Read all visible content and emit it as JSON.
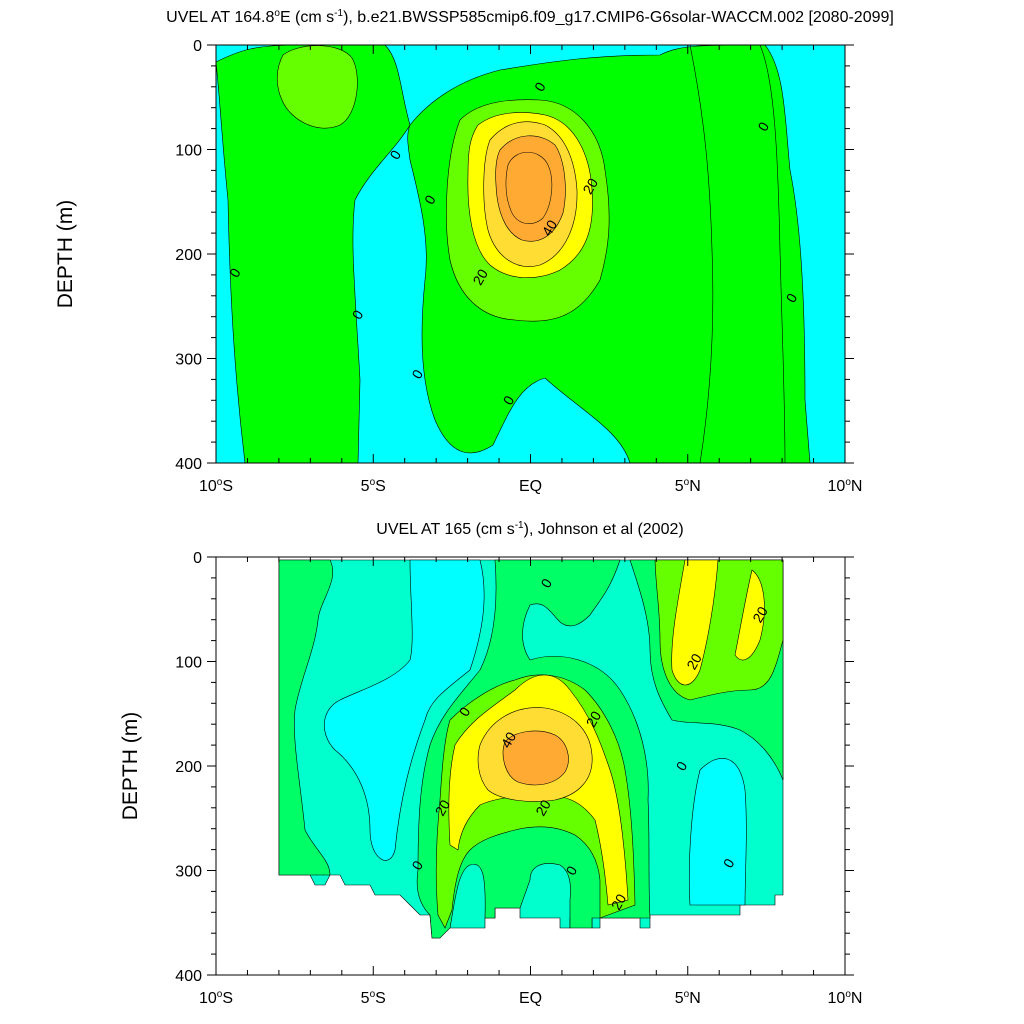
{
  "colors": {
    "c_neg": "#00ffff",
    "c_0": "#00ffcc",
    "c_5": "#00ff66",
    "c_10": "#00ff00",
    "c_15": "#66ff00",
    "c_20": "#ffff00",
    "c_30": "#ffdd33",
    "c_40": "#ffaa33",
    "missing": "#ffffff"
  },
  "chart_data": [
    {
      "type": "heatmap",
      "title_main": "UVEL AT 164.8",
      "title_deg": "o",
      "title_e": "E (cm s",
      "title_exp": "-1",
      "title_rest": "), b.e21.BWSSP585cmip6.f09_g17.CMIP6-G6solar-WACCM.002 [2080-2099]",
      "ylabel": "DEPTH (m)",
      "x_ticks": [
        {
          "value": -10,
          "num": "10",
          "deg": "o",
          "hemi": "S"
        },
        {
          "value": -5,
          "num": "5",
          "deg": "o",
          "hemi": "S"
        },
        {
          "value": 0,
          "num": "EQ",
          "deg": "",
          "hemi": ""
        },
        {
          "value": 5,
          "num": "5",
          "deg": "o",
          "hemi": "N"
        },
        {
          "value": 10,
          "num": "10",
          "deg": "o",
          "hemi": "N"
        }
      ],
      "y_ticks": [
        0,
        100,
        200,
        300,
        400
      ],
      "xlim": [
        -10,
        10
      ],
      "ylim": [
        0,
        400
      ],
      "contour_levels": [
        0,
        20,
        40
      ],
      "contour_labels": [
        {
          "text": "0",
          "lat": 0.3,
          "depth": 40
        },
        {
          "text": "0",
          "lat": -4.3,
          "depth": 105
        },
        {
          "text": "0",
          "lat": -3.2,
          "depth": 148
        },
        {
          "text": "0",
          "lat": -9.4,
          "depth": 218
        },
        {
          "text": "0",
          "lat": -5.5,
          "depth": 258
        },
        {
          "text": "0",
          "lat": -3.6,
          "depth": 315
        },
        {
          "text": "0",
          "lat": -0.7,
          "depth": 340
        },
        {
          "text": "0",
          "lat": 7.4,
          "depth": 78
        },
        {
          "text": "0",
          "lat": 8.3,
          "depth": 242
        },
        {
          "text": "20",
          "lat": 1.9,
          "depth": 135
        },
        {
          "text": "40",
          "lat": 0.6,
          "depth": 175
        },
        {
          "text": "20",
          "lat": -1.6,
          "depth": 222
        }
      ]
    },
    {
      "type": "heatmap",
      "title_main": "UVEL AT 165 (cm s",
      "title_exp": "-1",
      "title_rest": "), Johnson et al (2002)",
      "ylabel": "DEPTH (m)",
      "x_ticks": [
        {
          "value": -10,
          "num": "10",
          "deg": "o",
          "hemi": "S"
        },
        {
          "value": -5,
          "num": "5",
          "deg": "o",
          "hemi": "S"
        },
        {
          "value": 0,
          "num": "EQ",
          "deg": "",
          "hemi": ""
        },
        {
          "value": 5,
          "num": "5",
          "deg": "o",
          "hemi": "N"
        },
        {
          "value": 10,
          "num": "10",
          "deg": "o",
          "hemi": "N"
        }
      ],
      "y_ticks": [
        0,
        100,
        200,
        300,
        400
      ],
      "xlim": [
        -10,
        10
      ],
      "ylim": [
        0,
        400
      ],
      "contour_levels": [
        0,
        20,
        40
      ],
      "contour_labels": [
        {
          "text": "0",
          "lat": 0.5,
          "depth": 25
        },
        {
          "text": "0",
          "lat": -2.1,
          "depth": 148
        },
        {
          "text": "40",
          "lat": -0.7,
          "depth": 175
        },
        {
          "text": "20",
          "lat": 2.0,
          "depth": 155
        },
        {
          "text": "20",
          "lat": -2.8,
          "depth": 240
        },
        {
          "text": "20",
          "lat": 0.4,
          "depth": 240
        },
        {
          "text": "0",
          "lat": -3.6,
          "depth": 295
        },
        {
          "text": "0",
          "lat": 1.3,
          "depth": 300
        },
        {
          "text": "20",
          "lat": 2.8,
          "depth": 330
        },
        {
          "text": "0",
          "lat": 4.8,
          "depth": 200
        },
        {
          "text": "0",
          "lat": 6.3,
          "depth": 293
        },
        {
          "text": "20",
          "lat": 5.2,
          "depth": 100
        },
        {
          "text": "20",
          "lat": 7.3,
          "depth": 55
        }
      ]
    }
  ]
}
